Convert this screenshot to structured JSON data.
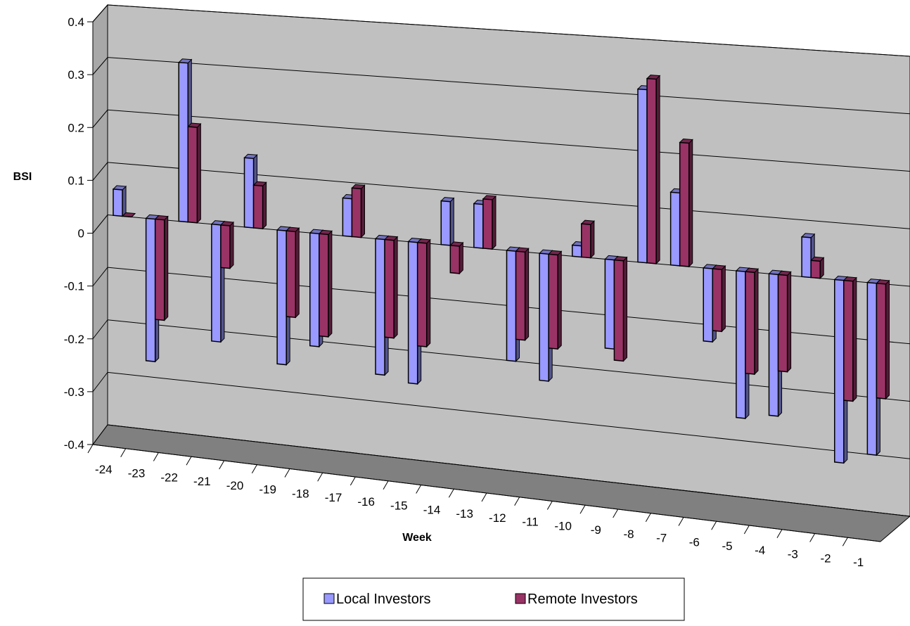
{
  "chart_data": {
    "type": "bar",
    "style": "3d-clustered-column",
    "title": "",
    "xlabel": "Week",
    "ylabel": "BSI",
    "ylim": [
      -0.4,
      0.4
    ],
    "yticks": [
      "0.4",
      "0.3",
      "0.2",
      "0.1",
      "0",
      "-0.1",
      "-0.2",
      "-0.3",
      "-0.4"
    ],
    "categories": [
      "-24",
      "-23",
      "-22",
      "-21",
      "-20",
      "-19",
      "-18",
      "-17",
      "-16",
      "-15",
      "-14",
      "-13",
      "-12",
      "-11",
      "-10",
      "-9",
      "-8",
      "-7",
      "-6",
      "-5",
      "-4",
      "-3",
      "-2",
      "-1"
    ],
    "series": [
      {
        "name": "Local Investors",
        "color": "#9999ff",
        "values": [
          0.05,
          -0.27,
          0.3,
          -0.22,
          0.13,
          -0.25,
          -0.21,
          0.07,
          -0.25,
          -0.26,
          0.08,
          0.08,
          -0.2,
          -0.23,
          0.02,
          -0.16,
          0.31,
          0.13,
          -0.13,
          -0.26,
          -0.25,
          0.07,
          -0.32,
          -0.3
        ]
      },
      {
        "name": "Remote Investors",
        "color": "#993366",
        "values": [
          0.0,
          -0.19,
          0.18,
          -0.08,
          0.08,
          -0.16,
          -0.19,
          0.09,
          -0.18,
          -0.19,
          -0.05,
          0.09,
          -0.16,
          -0.17,
          0.06,
          -0.18,
          0.33,
          0.22,
          -0.11,
          -0.18,
          -0.17,
          0.03,
          -0.21,
          -0.2
        ]
      }
    ],
    "grid": true,
    "legend": "bottom-center"
  }
}
